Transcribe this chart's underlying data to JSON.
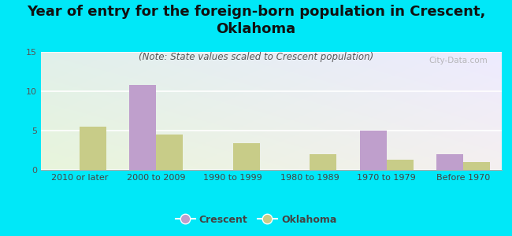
{
  "title": "Year of entry for the foreign-born population in Crescent,\nOklahoma",
  "subtitle": "(Note: State values scaled to Crescent population)",
  "categories": [
    "2010 or later",
    "2000 to 2009",
    "1990 to 1999",
    "1980 to 1989",
    "1970 to 1979",
    "Before 1970"
  ],
  "crescent_values": [
    0,
    10.8,
    0,
    0,
    5.0,
    2.0
  ],
  "oklahoma_values": [
    5.5,
    4.5,
    3.4,
    2.0,
    1.3,
    1.0
  ],
  "crescent_color": "#bf9fcc",
  "oklahoma_color": "#c8cc88",
  "background_color": "#00e8f8",
  "ylim": [
    0,
    15
  ],
  "yticks": [
    0,
    5,
    10,
    15
  ],
  "title_fontsize": 13,
  "subtitle_fontsize": 8.5,
  "tick_fontsize": 8,
  "legend_fontsize": 9,
  "watermark": "City-Data.com"
}
